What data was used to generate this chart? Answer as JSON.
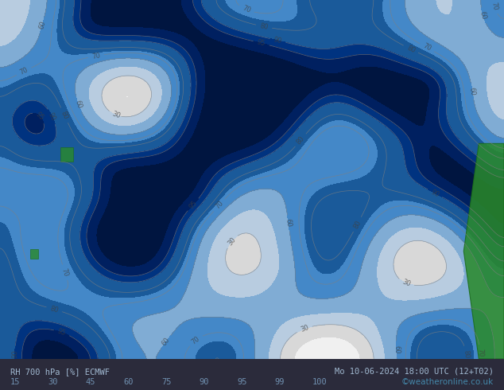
{
  "title_left": "RH 700 hPa [%] ECMWF",
  "title_right": "Mo 10-06-2024 18:00 UTC (12+T02)",
  "credit": "©weatheronline.co.uk",
  "colorbar_values": [
    15,
    30,
    45,
    60,
    75,
    90,
    95,
    99,
    100
  ],
  "colorbar_colors": [
    "#ffffff",
    "#d0d0d0",
    "#b0c8e0",
    "#7ab0d8",
    "#4090c8",
    "#2060a0",
    "#0040a0",
    "#003080",
    "#002060"
  ],
  "fill_colors": [
    "#f5f5f5",
    "#d8d8d8",
    "#c8dce8",
    "#90c0e0",
    "#5090d0",
    "#2060b0",
    "#0040b0",
    "#003090",
    "#002070"
  ],
  "bg_color": "#e8e8e8",
  "map_bg": "#c8dce8",
  "bottom_bar_color": "#1a1a2e",
  "bottom_bar_height": 0.068,
  "figsize": [
    6.34,
    4.9
  ],
  "dpi": 100
}
